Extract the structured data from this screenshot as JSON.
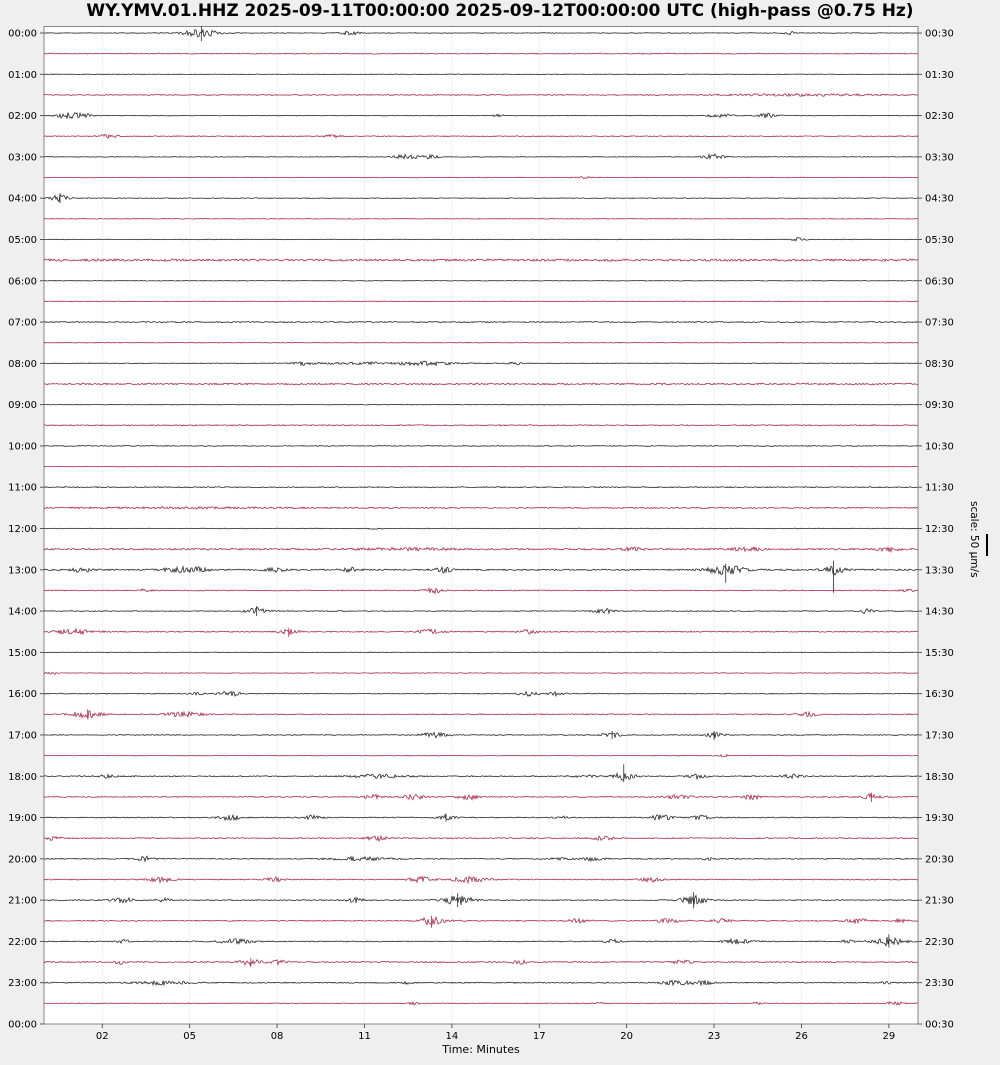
{
  "figure": {
    "title": "WY.YMV.01.HHZ 2025-09-11T00:00:00 2025-09-12T00:00:00 UTC (high-pass @0.75 Hz)",
    "xlabel": "Time: Minutes",
    "scale_label": "scale: 50 μm/s"
  },
  "chart_data": {
    "type": "line",
    "subtype": "helicorder-seismogram",
    "station": "WY.YMV.01.HHZ",
    "time_range_utc": [
      "2025-09-11T00:00:00",
      "2025-09-12T00:00:00"
    ],
    "filter": "high-pass @0.75 Hz",
    "title": "WY.YMV.01.HHZ 2025-09-11T00:00:00 2025-09-12T00:00:00 UTC (high-pass @0.75 Hz)",
    "xlabel": "Time: Minutes",
    "minutes_per_line": 30,
    "xlim": [
      0,
      30
    ],
    "x_ticks_minutes": [
      2,
      5,
      8,
      11,
      14,
      17,
      20,
      23,
      26,
      29
    ],
    "x_tick_labels": [
      "02",
      "05",
      "08",
      "11",
      "14",
      "17",
      "20",
      "23",
      "26",
      "29"
    ],
    "scale": {
      "label": "scale: 50 μm/s",
      "value": 50,
      "unit": "μm/s"
    },
    "grid": "vertical-dashed",
    "trace_colors": {
      "first_half_hex": "#282828",
      "second_half_hex": "#a92b4e"
    },
    "left_time_labels": [
      "00:00",
      "01:00",
      "02:00",
      "03:00",
      "04:00",
      "05:00",
      "06:00",
      "07:00",
      "08:00",
      "09:00",
      "10:00",
      "11:00",
      "12:00",
      "13:00",
      "14:00",
      "15:00",
      "16:00",
      "17:00",
      "18:00",
      "19:00",
      "20:00",
      "21:00",
      "22:00",
      "23:00",
      "00:00"
    ],
    "right_time_labels": [
      "00:30",
      "01:30",
      "02:30",
      "03:30",
      "04:30",
      "05:30",
      "06:30",
      "07:30",
      "08:30",
      "09:30",
      "10:30",
      "11:30",
      "12:30",
      "13:30",
      "14:30",
      "15:30",
      "16:30",
      "17:30",
      "18:30",
      "19:30",
      "20:30",
      "21:30",
      "22:30",
      "23:30",
      "00:30"
    ],
    "rows_note": "events are [minute, amplitude_px, width_min, optional spike_down_px, optional spike_up_px]",
    "rows": [
      {
        "start": "00:00",
        "color": "k",
        "noise": 0.35,
        "events": [
          [
            5.4,
            4,
            0.9,
            8,
            7
          ],
          [
            10.5,
            1.8,
            0.5
          ],
          [
            25.6,
            1.5,
            0.4
          ]
        ]
      },
      {
        "start": "00:30",
        "color": "r",
        "noise": 0.45,
        "events": []
      },
      {
        "start": "01:00",
        "color": "k",
        "noise": 0.3,
        "events": []
      },
      {
        "start": "01:30",
        "color": "r",
        "noise": 0.45,
        "events": [
          [
            26,
            1,
            4
          ]
        ]
      },
      {
        "start": "02:00",
        "color": "k",
        "noise": 0.3,
        "events": [
          [
            0.9,
            3.5,
            0.7
          ],
          [
            1.4,
            1.8,
            0.3
          ],
          [
            15.6,
            1.2,
            0.3
          ],
          [
            23.2,
            2.2,
            0.6
          ],
          [
            24.8,
            2.2,
            0.6
          ]
        ]
      },
      {
        "start": "02:30",
        "color": "r",
        "noise": 0.4,
        "events": [
          [
            2.2,
            2.2,
            0.5
          ],
          [
            9.9,
            1.8,
            0.4
          ]
        ]
      },
      {
        "start": "03:00",
        "color": "k",
        "noise": 0.3,
        "events": [
          [
            12.5,
            2.6,
            0.7
          ],
          [
            13.2,
            2.2,
            0.5
          ],
          [
            23.0,
            2.6,
            0.6
          ]
        ]
      },
      {
        "start": "03:30",
        "color": "r",
        "noise": 0.3,
        "events": [
          [
            18.5,
            1.2,
            0.3
          ]
        ]
      },
      {
        "start": "04:00",
        "color": "k",
        "noise": 0.35,
        "events": [
          [
            0.55,
            3.5,
            0.5,
            5,
            5
          ]
        ]
      },
      {
        "start": "04:30",
        "color": "r",
        "noise": 0.3,
        "events": []
      },
      {
        "start": "05:00",
        "color": "k",
        "noise": 0.3,
        "events": [
          [
            25.9,
            2,
            0.4
          ]
        ]
      },
      {
        "start": "05:30",
        "color": "r",
        "noise": 1.1,
        "events": []
      },
      {
        "start": "06:00",
        "color": "k",
        "noise": 0.3,
        "events": []
      },
      {
        "start": "06:30",
        "color": "r",
        "noise": 0.35,
        "events": []
      },
      {
        "start": "07:00",
        "color": "k",
        "noise": 0.55,
        "events": []
      },
      {
        "start": "07:30",
        "color": "r",
        "noise": 0.3,
        "events": []
      },
      {
        "start": "08:00",
        "color": "k",
        "noise": 0.35,
        "events": [
          [
            8.9,
            1.6,
            0.4
          ],
          [
            11.5,
            1.1,
            3.5
          ],
          [
            13.2,
            1.4,
            1.2
          ],
          [
            16.2,
            1,
            0.5
          ]
        ]
      },
      {
        "start": "08:30",
        "color": "r",
        "noise": 0.8,
        "events": []
      },
      {
        "start": "09:00",
        "color": "k",
        "noise": 0.3,
        "events": []
      },
      {
        "start": "09:30",
        "color": "r",
        "noise": 0.55,
        "events": []
      },
      {
        "start": "10:00",
        "color": "k",
        "noise": 0.4,
        "events": []
      },
      {
        "start": "10:30",
        "color": "r",
        "noise": 0.3,
        "events": []
      },
      {
        "start": "11:00",
        "color": "k",
        "noise": 0.5,
        "events": []
      },
      {
        "start": "11:30",
        "color": "r",
        "noise": 0.6,
        "events": [
          [
            5,
            0.6,
            6
          ]
        ]
      },
      {
        "start": "12:00",
        "color": "k",
        "noise": 0.3,
        "events": [
          [
            11.3,
            1.2,
            0.2
          ]
        ]
      },
      {
        "start": "12:30",
        "color": "r",
        "noise": 0.8,
        "events": [
          [
            12.5,
            1,
            2.5
          ],
          [
            20.2,
            1.6,
            0.5
          ],
          [
            24.1,
            2,
            0.8
          ],
          [
            29,
            2,
            0.6
          ]
        ]
      },
      {
        "start": "13:00",
        "color": "k",
        "noise": 0.65,
        "events": [
          [
            1.3,
            2.5,
            0.5
          ],
          [
            4.9,
            3.2,
            1.1
          ],
          [
            7.9,
            2,
            0.6
          ],
          [
            10.5,
            2.2,
            0.5
          ],
          [
            13.7,
            2.6,
            0.5
          ],
          [
            23.4,
            4.5,
            1.0,
            13,
            6
          ],
          [
            27.1,
            5,
            0.6,
            23,
            9
          ]
        ]
      },
      {
        "start": "13:30",
        "color": "r",
        "noise": 0.5,
        "events": [
          [
            3.4,
            1.3,
            0.4
          ],
          [
            13.4,
            2.6,
            0.5
          ],
          [
            29.7,
            1.8,
            0.4
          ]
        ]
      },
      {
        "start": "14:00",
        "color": "k",
        "noise": 0.4,
        "events": [
          [
            7.3,
            3,
            0.6,
            5,
            5
          ],
          [
            19.2,
            2.6,
            0.5
          ],
          [
            28.2,
            2.2,
            0.4
          ]
        ]
      },
      {
        "start": "14:30",
        "color": "r",
        "noise": 0.5,
        "events": [
          [
            1.1,
            2.6,
            1.1
          ],
          [
            8.4,
            3,
            0.5,
            5,
            4
          ],
          [
            13.2,
            2.2,
            0.7
          ],
          [
            16.7,
            2.6,
            0.5
          ]
        ]
      },
      {
        "start": "15:00",
        "color": "k",
        "noise": 0.3,
        "events": []
      },
      {
        "start": "15:30",
        "color": "r",
        "noise": 0.3,
        "events": [
          [
            0.3,
            1.2,
            0.3
          ]
        ]
      },
      {
        "start": "16:00",
        "color": "k",
        "noise": 0.4,
        "events": [
          [
            5.2,
            1.2,
            0.4
          ],
          [
            6.4,
            2.6,
            0.6
          ],
          [
            16.6,
            2.2,
            0.5
          ],
          [
            17.6,
            2,
            0.4
          ]
        ]
      },
      {
        "start": "16:30",
        "color": "r",
        "noise": 0.5,
        "events": [
          [
            1.5,
            4,
            0.8,
            5,
            5
          ],
          [
            4.8,
            2.6,
            0.9
          ],
          [
            26.2,
            2.2,
            0.5
          ]
        ]
      },
      {
        "start": "17:00",
        "color": "k",
        "noise": 0.4,
        "events": [
          [
            13.4,
            2.6,
            0.7
          ],
          [
            19.5,
            2.6,
            0.5,
            4,
            4
          ],
          [
            23.0,
            3,
            0.5,
            5,
            4
          ]
        ]
      },
      {
        "start": "17:30",
        "color": "r",
        "noise": 0.3,
        "events": [
          [
            23.3,
            1.2,
            0.3
          ]
        ]
      },
      {
        "start": "18:00",
        "color": "k",
        "noise": 0.5,
        "events": [
          [
            2.2,
            1.8,
            0.4
          ],
          [
            11.4,
            1.8,
            1.4
          ],
          [
            18.4,
            1.3,
            0.8
          ],
          [
            19.9,
            3.5,
            0.6,
            6,
            12
          ],
          [
            22.4,
            2.2,
            0.5
          ],
          [
            25.7,
            2.2,
            0.5
          ]
        ]
      },
      {
        "start": "18:30",
        "color": "r",
        "noise": 0.5,
        "events": [
          [
            11.3,
            2.2,
            0.5
          ],
          [
            12.7,
            2.6,
            0.5
          ],
          [
            14.6,
            2.6,
            0.6
          ],
          [
            21.8,
            2.6,
            0.6
          ],
          [
            24.3,
            2.6,
            0.5
          ],
          [
            28.4,
            3,
            0.5,
            5,
            4
          ]
        ]
      },
      {
        "start": "19:00",
        "color": "k",
        "noise": 0.5,
        "events": [
          [
            6.4,
            2.6,
            0.6
          ],
          [
            9.2,
            2.2,
            0.5
          ],
          [
            13.8,
            2.6,
            0.5,
            4,
            4
          ],
          [
            17.8,
            1.3,
            0.3
          ],
          [
            21.2,
            2.6,
            0.6
          ],
          [
            22.5,
            2.2,
            0.5
          ]
        ]
      },
      {
        "start": "19:30",
        "color": "r",
        "noise": 0.55,
        "events": [
          [
            0.3,
            1.8,
            0.5
          ],
          [
            11.4,
            2.6,
            0.5
          ],
          [
            19.2,
            2.2,
            0.5
          ]
        ]
      },
      {
        "start": "20:00",
        "color": "k",
        "noise": 0.5,
        "events": [
          [
            3.5,
            2.2,
            0.5
          ],
          [
            10.8,
            1.8,
            1.5
          ],
          [
            17.7,
            1.3,
            0.5
          ],
          [
            18.8,
            1.8,
            0.6
          ],
          [
            22.8,
            1.2,
            0.3
          ]
        ]
      },
      {
        "start": "20:30",
        "color": "r",
        "noise": 0.5,
        "events": [
          [
            4.0,
            2.6,
            0.7
          ],
          [
            7.9,
            2.2,
            0.5
          ],
          [
            12.9,
            2.6,
            0.6
          ],
          [
            14.6,
            3,
            0.9
          ],
          [
            20.9,
            2.6,
            0.6
          ]
        ]
      },
      {
        "start": "21:00",
        "color": "k",
        "noise": 0.5,
        "events": [
          [
            2.7,
            2.6,
            0.6
          ],
          [
            4.1,
            1.8,
            0.4
          ],
          [
            10.7,
            2.2,
            0.5
          ],
          [
            14.2,
            4.5,
            0.8,
            7,
            7
          ],
          [
            22.3,
            4.5,
            0.7,
            8,
            8
          ]
        ]
      },
      {
        "start": "21:30",
        "color": "r",
        "noise": 0.5,
        "events": [
          [
            13.3,
            4,
            0.7,
            7,
            5
          ],
          [
            18.3,
            2.2,
            0.5
          ],
          [
            21.4,
            2.2,
            0.6
          ],
          [
            23.3,
            1.8,
            0.5
          ],
          [
            27.9,
            2.6,
            0.5
          ],
          [
            29.4,
            1.8,
            0.4
          ]
        ]
      },
      {
        "start": "22:00",
        "color": "k",
        "noise": 0.5,
        "events": [
          [
            2.7,
            1.8,
            0.4
          ],
          [
            6.6,
            2.6,
            0.8
          ],
          [
            19.5,
            1.8,
            0.4
          ],
          [
            23.8,
            3,
            0.7
          ],
          [
            27.6,
            1.3,
            0.4
          ],
          [
            29.0,
            4,
            0.8,
            6,
            7
          ]
        ]
      },
      {
        "start": "22:30",
        "color": "r",
        "noise": 0.6,
        "events": [
          [
            2.6,
            1.8,
            0.3
          ],
          [
            7.1,
            3,
            0.6,
            5,
            4
          ],
          [
            8.1,
            2.2,
            0.4
          ],
          [
            16.3,
            2.2,
            0.4
          ],
          [
            21.9,
            1.8,
            0.6
          ]
        ]
      },
      {
        "start": "23:00",
        "color": "k",
        "noise": 0.5,
        "events": [
          [
            4.1,
            1.8,
            1.3
          ],
          [
            12.5,
            1.2,
            0.3
          ],
          [
            21.7,
            2.2,
            0.8
          ],
          [
            22.6,
            2.2,
            0.5
          ],
          [
            28.9,
            1.4,
            0.3
          ]
        ]
      },
      {
        "start": "23:30",
        "color": "r",
        "noise": 0.4,
        "events": [
          [
            12.7,
            1.3,
            0.3
          ],
          [
            19.0,
            1.1,
            0.3
          ],
          [
            24.5,
            1.1,
            0.3
          ],
          [
            29.2,
            1.8,
            0.4
          ]
        ]
      }
    ]
  }
}
